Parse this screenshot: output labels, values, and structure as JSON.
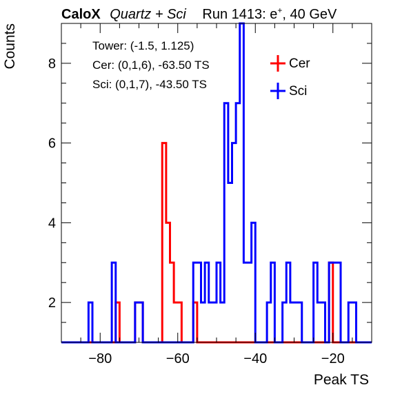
{
  "header": {
    "brand": "CaloX",
    "subtitle": "Quartz + Sci",
    "run": "Run 1413: e",
    "run_sup": "+",
    "energy": ", 40 GeV"
  },
  "info": {
    "tower": "Tower: (-1.5, 1.125)",
    "cer": "Cer: (0,1,6), -63.50 TS",
    "sci": "Sci: (0,1,7), -43.50 TS"
  },
  "chart_data": {
    "type": "histogram",
    "xlabel": "Peak TS",
    "ylabel": "Counts",
    "xlim": [
      -90,
      -10
    ],
    "ylim": [
      1,
      9
    ],
    "bin_width": 1,
    "x_ticks": [
      -80,
      -60,
      -40,
      -20
    ],
    "x_tick_labels": [
      "−80",
      "−60",
      "−40",
      "−20"
    ],
    "y_ticks": [
      2,
      4,
      6,
      8
    ],
    "y_tick_labels": [
      "2",
      "4",
      "6",
      "8"
    ],
    "legend": {
      "position": "top-right"
    },
    "series": [
      {
        "name": "Cer",
        "color": "#ff0000",
        "bins": [
          {
            "x": -75.5,
            "count": 2
          },
          {
            "x": -70.5,
            "count": 2
          },
          {
            "x": -69.5,
            "count": 2
          },
          {
            "x": -63.5,
            "count": 6
          },
          {
            "x": -62.5,
            "count": 4
          },
          {
            "x": -61.5,
            "count": 3
          },
          {
            "x": -60.5,
            "count": 2
          },
          {
            "x": -59.5,
            "count": 2
          },
          {
            "x": -55.5,
            "count": 2
          },
          {
            "x": -20.5,
            "count": 3
          }
        ]
      },
      {
        "name": "Sci",
        "color": "#0000ff",
        "bins": [
          {
            "x": -82.5,
            "count": 2
          },
          {
            "x": -76.5,
            "count": 3
          },
          {
            "x": -70.5,
            "count": 2
          },
          {
            "x": -69.5,
            "count": 2
          },
          {
            "x": -55.5,
            "count": 3
          },
          {
            "x": -54.5,
            "count": 3
          },
          {
            "x": -53.5,
            "count": 2
          },
          {
            "x": -52.5,
            "count": 3
          },
          {
            "x": -51.5,
            "count": 2
          },
          {
            "x": -50.5,
            "count": 2
          },
          {
            "x": -49.5,
            "count": 3
          },
          {
            "x": -48.5,
            "count": 2
          },
          {
            "x": -47.5,
            "count": 7
          },
          {
            "x": -46.5,
            "count": 5
          },
          {
            "x": -45.5,
            "count": 6
          },
          {
            "x": -44.5,
            "count": 7
          },
          {
            "x": -43.5,
            "count": 9
          },
          {
            "x": -42.5,
            "count": 3
          },
          {
            "x": -41.5,
            "count": 3
          },
          {
            "x": -40.5,
            "count": 4
          },
          {
            "x": -36.5,
            "count": 2
          },
          {
            "x": -35.5,
            "count": 3
          },
          {
            "x": -32.5,
            "count": 2
          },
          {
            "x": -31.5,
            "count": 3
          },
          {
            "x": -30.5,
            "count": 2
          },
          {
            "x": -29.5,
            "count": 2
          },
          {
            "x": -28.5,
            "count": 2
          },
          {
            "x": -24.5,
            "count": 3
          },
          {
            "x": -23.5,
            "count": 2
          },
          {
            "x": -22.5,
            "count": 2
          },
          {
            "x": -20.5,
            "count": 3
          },
          {
            "x": -19.5,
            "count": 3
          },
          {
            "x": -18.5,
            "count": 3
          },
          {
            "x": -15.5,
            "count": 2
          },
          {
            "x": -14.5,
            "count": 2
          }
        ]
      }
    ]
  }
}
